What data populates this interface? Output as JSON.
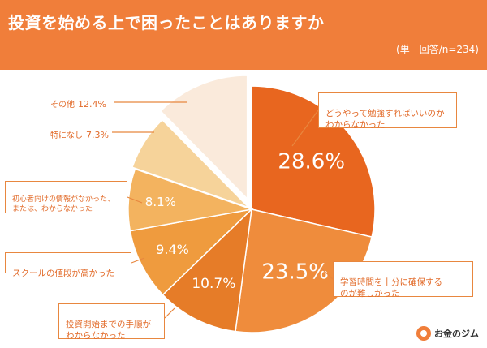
{
  "header": {
    "title": "投資を始める上で困ったことはありますか",
    "subtitle": "(単一回答/n=234)"
  },
  "brand": {
    "logo_text": "お金のジム"
  },
  "colors": {
    "header_bg": "#f07e3a",
    "callout_border": "#e8873f",
    "callout_text": "#e26b2a"
  },
  "chart_data": {
    "type": "pie",
    "title": "投資を始める上で困ったことはありますか",
    "subtitle": "(単一回答/n=234)",
    "unit": "%",
    "slices": [
      {
        "label": "どうやって勉強すればいいのか\nわからなかった",
        "value": 28.6,
        "display": "28.6%",
        "color": "#e8661f"
      },
      {
        "label": "学習時間を十分に確保する\nのが難しかった",
        "value": 23.5,
        "display": "23.5%",
        "color": "#ef8c3c"
      },
      {
        "label": "投資開始までの手順が\nわからなかった",
        "value": 10.7,
        "display": "10.7%",
        "color": "#e67c28"
      },
      {
        "label": "スクールの値段が高かった",
        "value": 9.4,
        "display": "9.4%",
        "color": "#ef9b3e"
      },
      {
        "label": "初心者向けの情報がなかった、\nまたは、わからなかった",
        "value": 8.1,
        "display": "8.1%",
        "color": "#f3b35f"
      },
      {
        "label": "特になし",
        "value": 7.3,
        "display": "7.3%",
        "color": "#f6d39a"
      },
      {
        "label": "その他",
        "value": 12.4,
        "display": "12.4%",
        "color": "#faeadb"
      }
    ]
  }
}
